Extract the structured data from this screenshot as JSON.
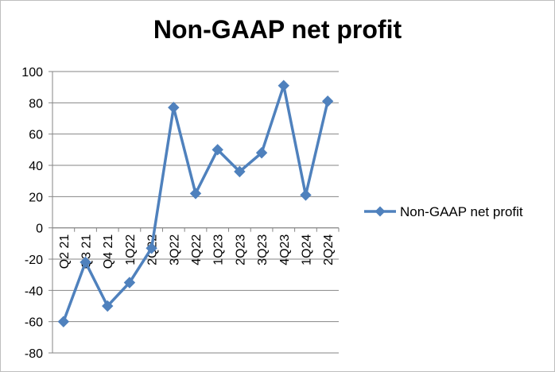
{
  "chart_data": {
    "type": "line",
    "title": "Non-GAAP net profit",
    "categories": [
      "Q2 21",
      "Q3 21",
      "Q4 21",
      "1Q22",
      "2Q22",
      "3Q22",
      "4Q22",
      "1Q23",
      "2Q23",
      "3Q23",
      "4Q23",
      "1Q24",
      "2Q24"
    ],
    "series": [
      {
        "name": "Non-GAAP net profit",
        "values": [
          -60,
          -22,
          -50,
          -35,
          -13,
          77,
          22,
          50,
          36,
          48,
          91,
          21,
          81
        ],
        "color": "#4f81bd",
        "marker": "diamond"
      }
    ],
    "ylim": [
      -80,
      100
    ],
    "yticks": [
      "100",
      "80",
      "60",
      "40",
      "20",
      "0",
      "-20",
      "-40",
      "-60",
      "-80"
    ],
    "grid": true,
    "legend": "right"
  }
}
